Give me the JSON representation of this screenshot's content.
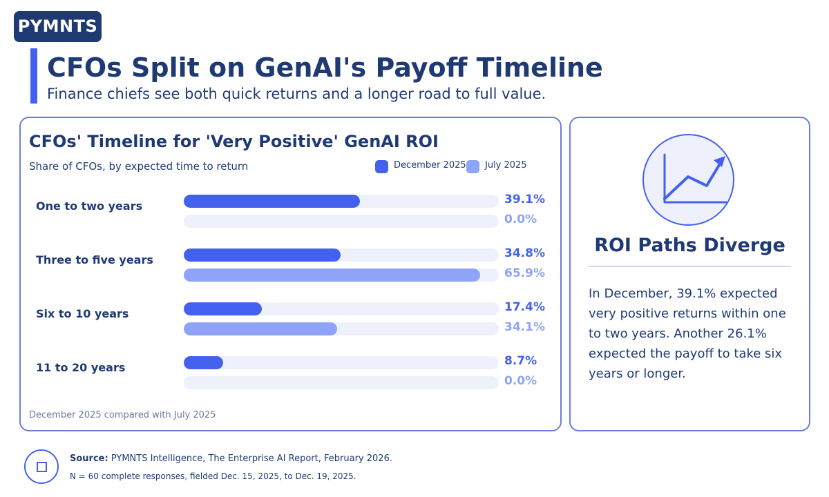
{
  "brand": {
    "logo_text": "PYMNTS"
  },
  "header": {
    "title": "CFOs Split on GenAI's Payoff Timeline",
    "subtitle": "Finance chiefs see both quick returns and a longer road to full value."
  },
  "colors": {
    "primary": "#4361ee",
    "secondary": "#8fa3f8",
    "navy": "#1f3a73",
    "track": "#eef1fb"
  },
  "chart_data": {
    "type": "bar",
    "orientation": "horizontal",
    "title": "CFOs' Timeline for 'Very Positive' GenAI ROI",
    "subtitle": "Share of CFOs, by expected time to return",
    "categories": [
      "One to two years",
      "Three to five years",
      "Six to 10 years",
      "11 to 20 years"
    ],
    "series": [
      {
        "name": "December 2025",
        "color": "#4361ee",
        "values": [
          39.1,
          34.8,
          17.4,
          8.7
        ]
      },
      {
        "name": "July 2025",
        "color": "#8fa3f8",
        "values": [
          0.0,
          65.9,
          34.1,
          0.0
        ]
      }
    ],
    "value_labels": [
      [
        "39.1%",
        "34.8%",
        "17.4%",
        "8.7%"
      ],
      [
        "0.0%",
        "65.9%",
        "34.1%",
        "0.0%"
      ]
    ],
    "xlim": [
      0,
      70
    ],
    "legend_position": "top-right",
    "note": "December 2025 compared with July 2025"
  },
  "side_panel": {
    "icon": "trend-chart-icon",
    "title": "ROI Paths Diverge",
    "body": "In December, 39.1% expected very positive returns within one to two years. Another 26.1% expected the payoff to take six years or longer."
  },
  "footer": {
    "icon": "square-icon",
    "source_label": "Source:",
    "source_text": " PYMNTS Intelligence, The Enterprise AI Report, February 2026.",
    "n_text": "N = 60 complete responses, fielded Dec. 15, 2025, to Dec. 19, 2025."
  }
}
